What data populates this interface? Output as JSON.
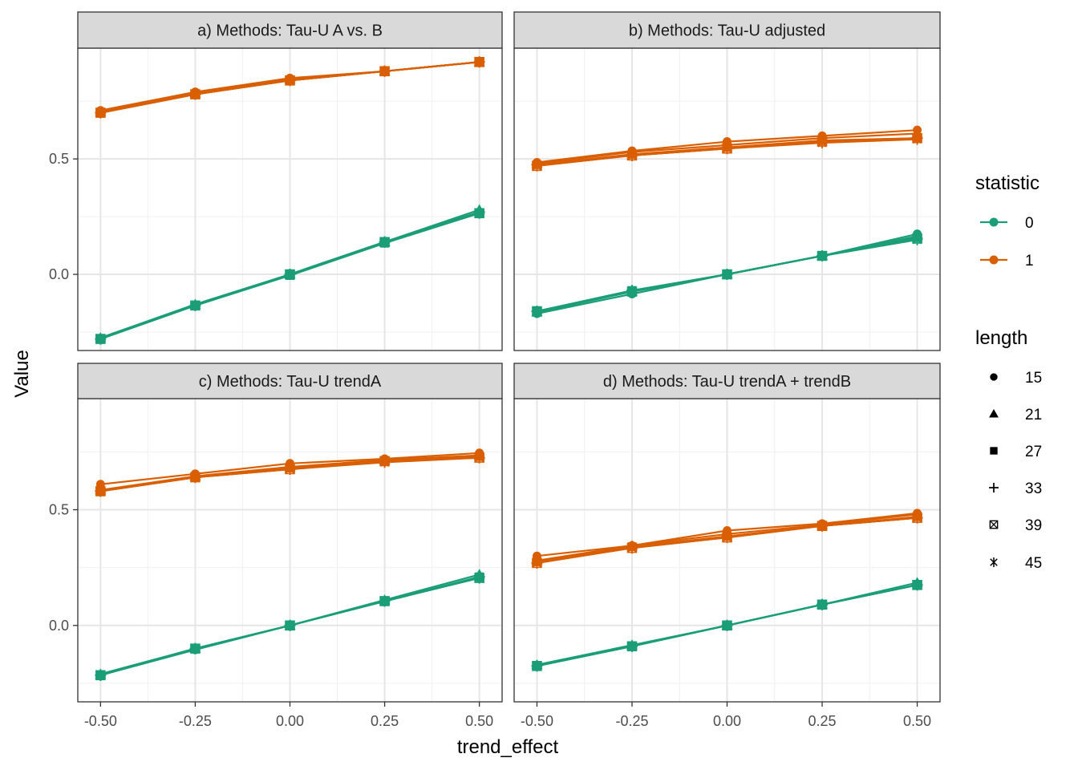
{
  "chart_data": {
    "type": "line",
    "xlabel": "trend_effect",
    "ylabel": "Value",
    "x": [
      -0.5,
      -0.25,
      0.0,
      0.25,
      0.5
    ],
    "x_tick_labels": [
      "-0.50",
      "-0.25",
      "0.00",
      "0.25",
      "0.50"
    ],
    "y_ticks": [
      0.0,
      0.5
    ],
    "y_tick_labels": [
      "0.0",
      "0.5"
    ],
    "ylim": [
      -0.33,
      0.98
    ],
    "grid": true,
    "colors": {
      "0": "#1b9e77",
      "1": "#d95f02"
    },
    "legend": {
      "position": "right",
      "statistic": {
        "title": "statistic",
        "labels": [
          "0",
          "1"
        ]
      },
      "length": {
        "title": "length",
        "labels": [
          "15",
          "21",
          "27",
          "33",
          "39",
          "45"
        ],
        "shapes": [
          "circle",
          "triangle",
          "square",
          "plus",
          "boxed-x",
          "asterisk"
        ]
      }
    },
    "panels": [
      {
        "strip": "a) Methods: Tau-U A vs. B",
        "series": [
          {
            "statistic": "1",
            "length": "15",
            "values": [
              0.71,
              0.79,
              0.85,
              0.88,
              0.92
            ]
          },
          {
            "statistic": "1",
            "length": "21",
            "values": [
              0.705,
              0.785,
              0.845,
              0.88,
              0.92
            ]
          },
          {
            "statistic": "1",
            "length": "27",
            "values": [
              0.7,
              0.78,
              0.84,
              0.88,
              0.92
            ]
          },
          {
            "statistic": "1",
            "length": "33",
            "values": [
              0.7,
              0.78,
              0.84,
              0.88,
              0.92
            ]
          },
          {
            "statistic": "1",
            "length": "39",
            "values": [
              0.7,
              0.78,
              0.84,
              0.88,
              0.92
            ]
          },
          {
            "statistic": "1",
            "length": "45",
            "values": [
              0.7,
              0.78,
              0.84,
              0.88,
              0.92
            ]
          },
          {
            "statistic": "0",
            "length": "15",
            "values": [
              -0.28,
              -0.135,
              0.0,
              0.14,
              0.27
            ]
          },
          {
            "statistic": "0",
            "length": "21",
            "values": [
              -0.275,
              -0.13,
              0.0,
              0.14,
              0.28
            ]
          },
          {
            "statistic": "0",
            "length": "27",
            "values": [
              -0.28,
              -0.135,
              -0.005,
              0.135,
              0.265
            ]
          },
          {
            "statistic": "0",
            "length": "33",
            "values": [
              -0.28,
              -0.135,
              0.0,
              0.14,
              0.27
            ]
          },
          {
            "statistic": "0",
            "length": "39",
            "values": [
              -0.28,
              -0.135,
              0.0,
              0.14,
              0.265
            ]
          },
          {
            "statistic": "0",
            "length": "45",
            "values": [
              -0.28,
              -0.135,
              0.0,
              0.14,
              0.265
            ]
          }
        ]
      },
      {
        "strip": "b) Methods: Tau-U adjusted",
        "series": [
          {
            "statistic": "1",
            "length": "15",
            "values": [
              0.485,
              0.535,
              0.575,
              0.6,
              0.625
            ]
          },
          {
            "statistic": "1",
            "length": "21",
            "values": [
              0.48,
              0.53,
              0.56,
              0.59,
              0.61
            ]
          },
          {
            "statistic": "1",
            "length": "27",
            "values": [
              0.475,
              0.52,
              0.55,
              0.58,
              0.59
            ]
          },
          {
            "statistic": "1",
            "length": "33",
            "values": [
              0.475,
              0.515,
              0.545,
              0.575,
              0.59
            ]
          },
          {
            "statistic": "1",
            "length": "39",
            "values": [
              0.47,
              0.515,
              0.545,
              0.575,
              0.59
            ]
          },
          {
            "statistic": "1",
            "length": "45",
            "values": [
              0.47,
              0.515,
              0.545,
              0.57,
              0.585
            ]
          },
          {
            "statistic": "0",
            "length": "15",
            "values": [
              -0.17,
              -0.085,
              0.0,
              0.08,
              0.175
            ]
          },
          {
            "statistic": "0",
            "length": "21",
            "values": [
              -0.165,
              -0.075,
              0.0,
              0.08,
              0.165
            ]
          },
          {
            "statistic": "0",
            "length": "27",
            "values": [
              -0.16,
              -0.07,
              0.0,
              0.08,
              0.16
            ]
          },
          {
            "statistic": "0",
            "length": "33",
            "values": [
              -0.16,
              -0.07,
              0.0,
              0.08,
              0.155
            ]
          },
          {
            "statistic": "0",
            "length": "39",
            "values": [
              -0.16,
              -0.075,
              0.0,
              0.08,
              0.155
            ]
          },
          {
            "statistic": "0",
            "length": "45",
            "values": [
              -0.16,
              -0.075,
              0.0,
              0.08,
              0.15
            ]
          }
        ]
      },
      {
        "strip": "c) Methods: Tau-U trendA",
        "series": [
          {
            "statistic": "1",
            "length": "15",
            "values": [
              0.61,
              0.655,
              0.7,
              0.72,
              0.745
            ]
          },
          {
            "statistic": "1",
            "length": "21",
            "values": [
              0.585,
              0.645,
              0.685,
              0.715,
              0.735
            ]
          },
          {
            "statistic": "1",
            "length": "27",
            "values": [
              0.58,
              0.64,
              0.68,
              0.71,
              0.73
            ]
          },
          {
            "statistic": "1",
            "length": "33",
            "values": [
              0.58,
              0.64,
              0.675,
              0.71,
              0.725
            ]
          },
          {
            "statistic": "1",
            "length": "39",
            "values": [
              0.58,
              0.64,
              0.675,
              0.71,
              0.725
            ]
          },
          {
            "statistic": "1",
            "length": "45",
            "values": [
              0.58,
              0.64,
              0.675,
              0.705,
              0.725
            ]
          },
          {
            "statistic": "0",
            "length": "15",
            "values": [
              -0.215,
              -0.105,
              0.0,
              0.105,
              0.205
            ]
          },
          {
            "statistic": "0",
            "length": "21",
            "values": [
              -0.21,
              -0.1,
              0.0,
              0.11,
              0.22
            ]
          },
          {
            "statistic": "0",
            "length": "27",
            "values": [
              -0.215,
              -0.1,
              0.0,
              0.105,
              0.21
            ]
          },
          {
            "statistic": "0",
            "length": "33",
            "values": [
              -0.215,
              -0.1,
              0.0,
              0.105,
              0.21
            ]
          },
          {
            "statistic": "0",
            "length": "39",
            "values": [
              -0.215,
              -0.1,
              0.0,
              0.105,
              0.205
            ]
          },
          {
            "statistic": "0",
            "length": "45",
            "values": [
              -0.215,
              -0.1,
              0.0,
              0.105,
              0.205
            ]
          }
        ]
      },
      {
        "strip": "d) Methods: Tau-U trendA + trendB",
        "series": [
          {
            "statistic": "1",
            "length": "15",
            "values": [
              0.3,
              0.345,
              0.41,
              0.44,
              0.485
            ]
          },
          {
            "statistic": "1",
            "length": "21",
            "values": [
              0.28,
              0.345,
              0.395,
              0.435,
              0.48
            ]
          },
          {
            "statistic": "1",
            "length": "27",
            "values": [
              0.275,
              0.34,
              0.385,
              0.43,
              0.47
            ]
          },
          {
            "statistic": "1",
            "length": "33",
            "values": [
              0.27,
              0.335,
              0.385,
              0.43,
              0.465
            ]
          },
          {
            "statistic": "1",
            "length": "39",
            "values": [
              0.27,
              0.335,
              0.38,
              0.43,
              0.465
            ]
          },
          {
            "statistic": "1",
            "length": "45",
            "values": [
              0.27,
              0.335,
              0.38,
              0.43,
              0.465
            ]
          },
          {
            "statistic": "0",
            "length": "15",
            "values": [
              -0.175,
              -0.09,
              0.0,
              0.09,
              0.175
            ]
          },
          {
            "statistic": "0",
            "length": "21",
            "values": [
              -0.17,
              -0.085,
              0.0,
              0.09,
              0.185
            ]
          },
          {
            "statistic": "0",
            "length": "27",
            "values": [
              -0.175,
              -0.09,
              0.0,
              0.09,
              0.175
            ]
          },
          {
            "statistic": "0",
            "length": "33",
            "values": [
              -0.175,
              -0.09,
              0.0,
              0.09,
              0.175
            ]
          },
          {
            "statistic": "0",
            "length": "39",
            "values": [
              -0.175,
              -0.09,
              0.0,
              0.09,
              0.175
            ]
          },
          {
            "statistic": "0",
            "length": "45",
            "values": [
              -0.175,
              -0.09,
              0.0,
              0.09,
              0.175
            ]
          }
        ]
      }
    ]
  }
}
